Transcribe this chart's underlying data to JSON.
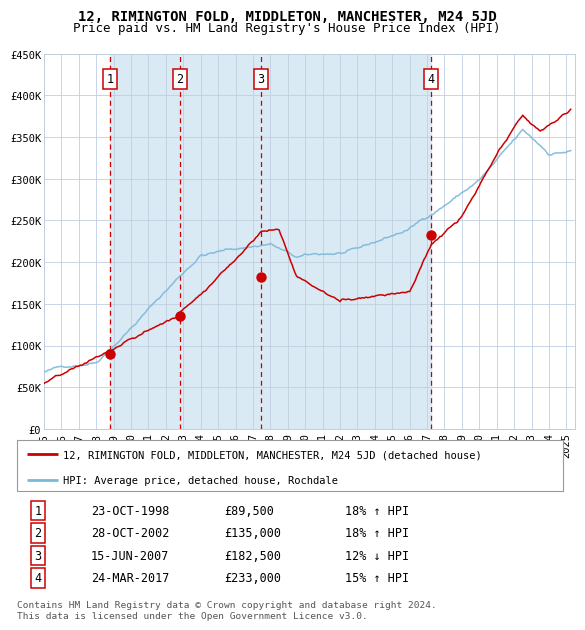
{
  "title": "12, RIMINGTON FOLD, MIDDLETON, MANCHESTER, M24 5JD",
  "subtitle": "Price paid vs. HM Land Registry's House Price Index (HPI)",
  "legend_line1": "12, RIMINGTON FOLD, MIDDLETON, MANCHESTER, M24 5JD (detached house)",
  "legend_line2": "HPI: Average price, detached house, Rochdale",
  "footnote": "Contains HM Land Registry data © Crown copyright and database right 2024.\nThis data is licensed under the Open Government Licence v3.0.",
  "transactions": [
    {
      "num": 1,
      "date": "23-OCT-1998",
      "price": 89500,
      "hpi_rel": "18% ↑ HPI",
      "x_year": 1998.81
    },
    {
      "num": 2,
      "date": "28-OCT-2002",
      "price": 135000,
      "hpi_rel": "18% ↑ HPI",
      "x_year": 2002.82
    },
    {
      "num": 3,
      "date": "15-JUN-2007",
      "price": 182500,
      "hpi_rel": "12% ↓ HPI",
      "x_year": 2007.46
    },
    {
      "num": 4,
      "date": "24-MAR-2017",
      "price": 233000,
      "hpi_rel": "15% ↑ HPI",
      "x_year": 2017.23
    }
  ],
  "hpi_color": "#7ab8d9",
  "price_color": "#cc0000",
  "dot_color": "#cc0000",
  "vline_color": "#cc0000",
  "bg_band_color": "#daeaf5",
  "grid_color": "#c0cfe0",
  "ylim": [
    0,
    450000
  ],
  "xlim_start": 1995.0,
  "xlim_end": 2025.5,
  "title_fontsize": 10,
  "subtitle_fontsize": 9,
  "tick_fontsize": 7.5
}
